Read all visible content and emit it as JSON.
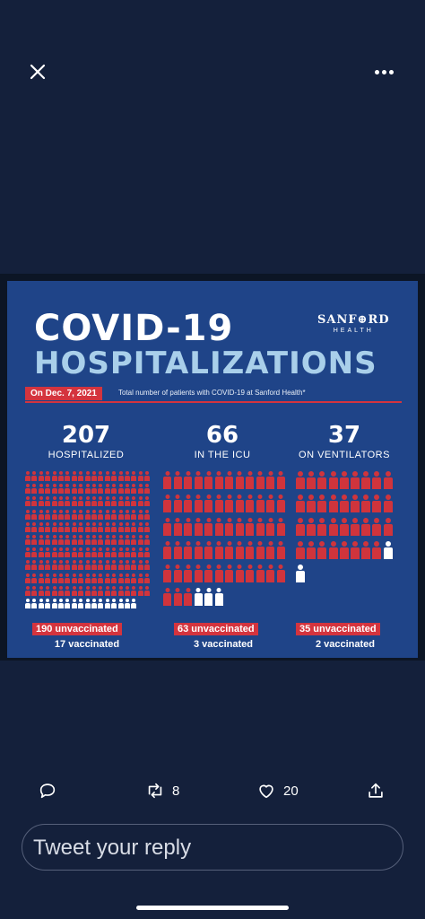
{
  "header": {
    "close_icon": "close-icon",
    "more_icon": "more-options-icon"
  },
  "infographic": {
    "title_line1": "COVID-19",
    "title_line2": "HOSPITALIZATIONS",
    "logo_name": "SANF⊕RD",
    "logo_sub": "HEALTH",
    "date_badge": "On Dec. 7, 2021",
    "date_description": "Total number of patients with COVID-19 at Sanford Health*",
    "stats": [
      {
        "number": "207",
        "label": "HOSPITALIZED",
        "unvaccinated": "190 unvaccinated",
        "vaccinated": "17 vaccinated"
      },
      {
        "number": "66",
        "label": "IN THE ICU",
        "unvaccinated": "63 unvaccinated",
        "vaccinated": "3 vaccinated"
      },
      {
        "number": "37",
        "label": "ON VENTILATORS",
        "unvaccinated": "35 unvaccinated",
        "vaccinated": "2 vaccinated"
      }
    ],
    "colors": {
      "unvaccinated": "#d0343c",
      "vaccinated": "#ffffff",
      "background": "#1f4488",
      "title_accent": "#a9cfea"
    }
  },
  "actions": {
    "reply_icon": "reply-icon",
    "retweet_icon": "retweet-icon",
    "retweet_count": "8",
    "like_icon": "heart-icon",
    "like_count": "20",
    "share_icon": "share-icon"
  },
  "reply": {
    "placeholder": "Tweet your reply"
  }
}
